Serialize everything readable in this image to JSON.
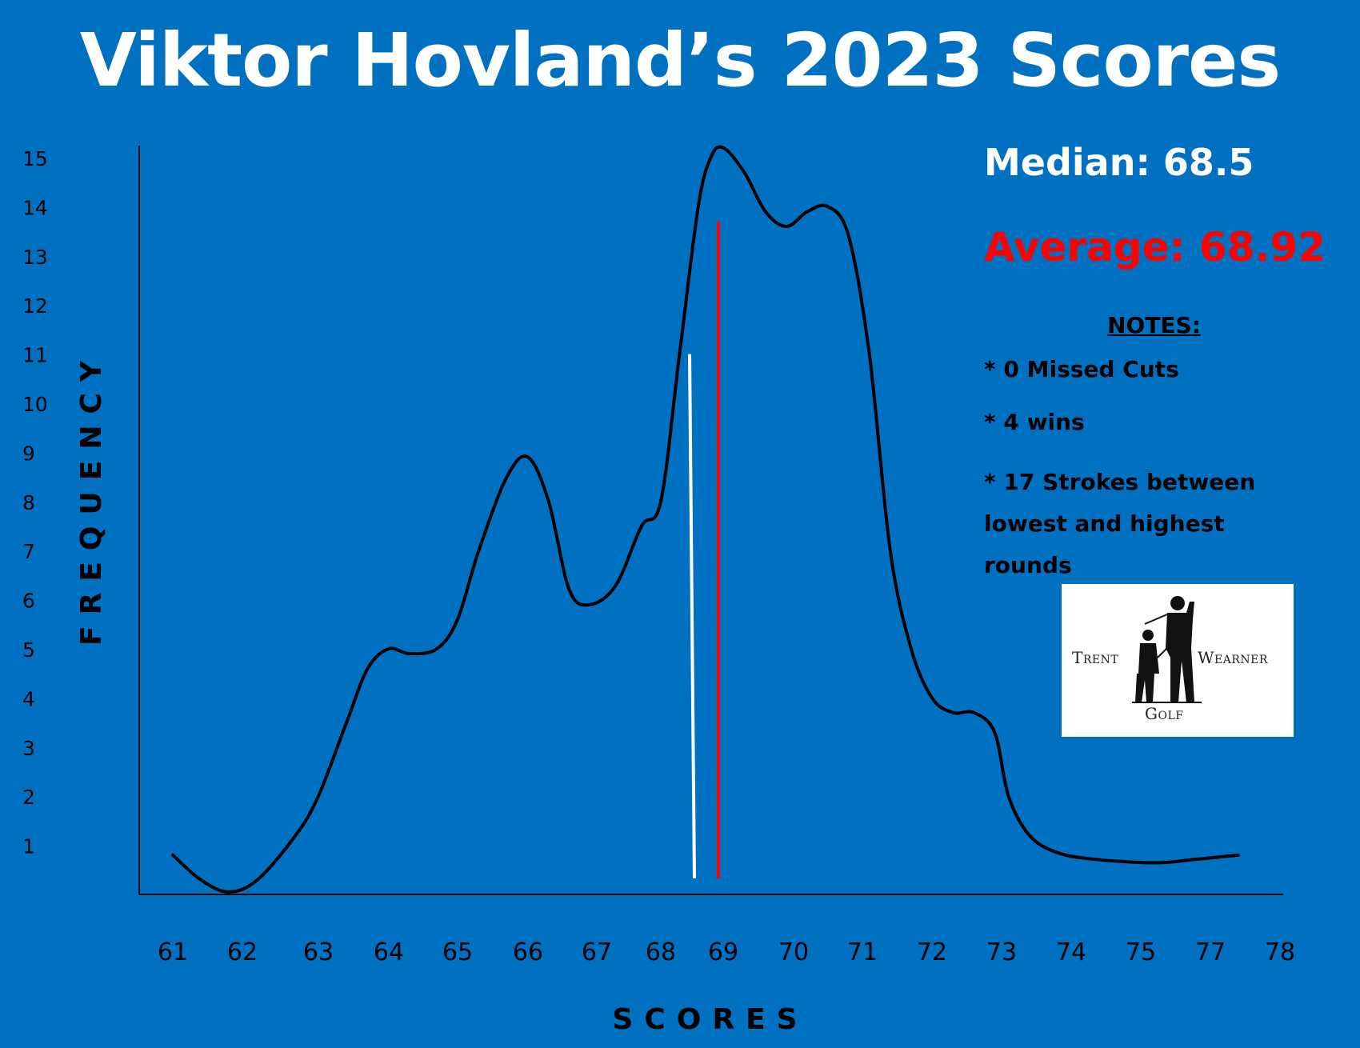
{
  "colors": {
    "background": "#0070c0",
    "curve": "#000000",
    "median_line": "#ffffff",
    "average_line": "#ff0000",
    "title": "#ffffff",
    "average_text": "#ff0000"
  },
  "stats": {
    "median": "Median:  68.5",
    "average": "Average:  68.92"
  },
  "notes": {
    "heading": "NOTES:",
    "items": [
      "* 0 Missed Cuts",
      "* 4 wins",
      "* 17 Strokes between lowest and highest rounds"
    ]
  },
  "logo": {
    "left_text": "Trent",
    "right_text": "Wearner",
    "bottom_text": "Golf"
  },
  "chart_data": {
    "type": "line",
    "title": "Viktor Hovland’s 2023 Scores",
    "xlabel": "SCORES",
    "ylabel": "FREQUENCY",
    "x_categories": [
      "61",
      "62",
      "63",
      "64",
      "65",
      "66",
      "67",
      "68",
      "69",
      "70",
      "71",
      "72",
      "73",
      "74",
      "75",
      "77",
      "78"
    ],
    "y_ticks": [
      "1",
      "2",
      "3",
      "4",
      "5",
      "6",
      "7",
      "8",
      "9",
      "10",
      "11",
      "12",
      "13",
      "14",
      "15"
    ],
    "ylim": [
      0,
      15
    ],
    "curve_points": [
      [
        61.0,
        0.8
      ],
      [
        61.4,
        0.3
      ],
      [
        61.8,
        0.05
      ],
      [
        62.2,
        0.3
      ],
      [
        62.7,
        1.2
      ],
      [
        63.0,
        2.0
      ],
      [
        63.4,
        3.5
      ],
      [
        63.7,
        4.6
      ],
      [
        64.0,
        5.0
      ],
      [
        64.3,
        4.9
      ],
      [
        64.7,
        5.0
      ],
      [
        65.0,
        5.6
      ],
      [
        65.3,
        7.0
      ],
      [
        65.7,
        8.5
      ],
      [
        66.0,
        8.9
      ],
      [
        66.3,
        8.0
      ],
      [
        66.6,
        6.2
      ],
      [
        66.9,
        5.9
      ],
      [
        67.3,
        6.3
      ],
      [
        67.7,
        7.5
      ],
      [
        68.0,
        8.0
      ],
      [
        68.3,
        11.0
      ],
      [
        68.6,
        14.0
      ],
      [
        68.8,
        15.0
      ],
      [
        69.0,
        15.2
      ],
      [
        69.3,
        14.7
      ],
      [
        69.6,
        13.9
      ],
      [
        69.9,
        13.6
      ],
      [
        70.2,
        13.9
      ],
      [
        70.5,
        14.0
      ],
      [
        70.8,
        13.4
      ],
      [
        71.1,
        11.0
      ],
      [
        71.4,
        7.0
      ],
      [
        71.7,
        5.0
      ],
      [
        72.0,
        4.0
      ],
      [
        72.3,
        3.7
      ],
      [
        72.6,
        3.7
      ],
      [
        72.9,
        3.3
      ],
      [
        73.1,
        2.0
      ],
      [
        73.4,
        1.2
      ],
      [
        73.8,
        0.85
      ],
      [
        74.3,
        0.72
      ],
      [
        75.0,
        0.65
      ],
      [
        75.7,
        0.65
      ],
      [
        76.4,
        0.7
      ],
      [
        77.4,
        0.8
      ]
    ],
    "median_line": {
      "x": 68.5,
      "top": 11.0
    },
    "average_line": {
      "x": 68.92,
      "top": 13.7
    },
    "grid": false,
    "legend": "none"
  }
}
